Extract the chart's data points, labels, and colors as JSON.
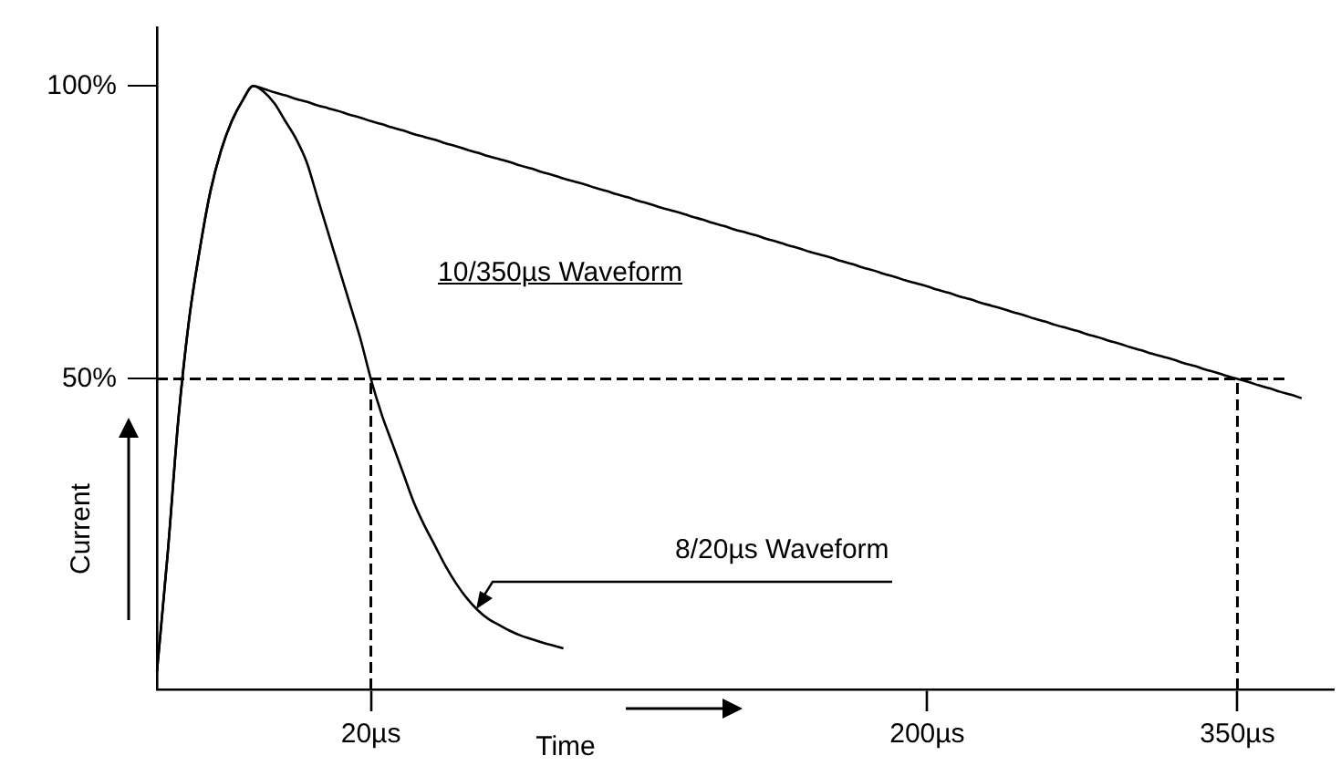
{
  "chart_data": {
    "type": "line",
    "xlabel": "Time",
    "ylabel": "Current",
    "categories": [
      null,
      null,
      null,
      null,
      null,
      null,
      null,
      null,
      null,
      null,
      null,
      null,
      null,
      null,
      null,
      null,
      null,
      null,
      null,
      null,
      "20µs",
      null,
      null,
      null,
      null,
      null,
      null,
      null,
      null,
      null,
      null,
      null,
      null,
      null,
      null,
      null,
      null,
      null,
      null,
      null,
      null,
      null,
      null,
      null,
      null,
      null,
      null,
      null,
      null,
      null,
      null,
      null,
      null,
      null,
      null,
      null,
      null,
      null,
      null,
      null,
      null,
      null,
      null,
      null,
      null,
      null,
      null,
      null,
      null,
      null,
      null,
      null,
      "200µs",
      null,
      null,
      null,
      null,
      null,
      null,
      null,
      null,
      null,
      null,
      null,
      null,
      null,
      null,
      null,
      null,
      null,
      null,
      null,
      null,
      null,
      null,
      null,
      null,
      null,
      null,
      null,
      null,
      "350µs",
      null,
      null,
      null,
      null,
      null,
      null,
      null,
      null,
      null
    ],
    "ylim": [
      -3,
      110
    ],
    "yticks": [
      {
        "value": 50,
        "label": "50%"
      },
      {
        "value": 100,
        "label": "100%"
      }
    ],
    "grid": false,
    "legend": false,
    "marker": "none",
    "line_style": "solid",
    "series": [
      {
        "name": "8/20µs Waveform",
        "color": "#000000",
        "values": [
          0,
          20,
          43,
          60,
          72,
          82,
          89,
          94,
          97.5,
          100,
          99,
          97,
          94,
          91,
          87,
          81,
          75,
          69,
          63,
          57,
          50,
          44,
          39,
          34,
          29,
          25,
          21.5,
          18,
          15,
          12.5,
          10.5,
          9,
          8,
          7,
          6.2,
          5.6,
          5,
          4.5,
          4,
          null,
          null,
          null,
          null,
          null,
          null,
          null,
          null,
          null,
          null,
          null,
          null,
          null,
          null,
          null,
          null,
          null,
          null,
          null,
          null,
          null,
          null,
          null,
          null,
          null,
          null,
          null,
          null,
          null,
          null,
          null,
          null,
          null,
          null,
          null,
          null,
          null,
          null,
          null,
          null,
          null,
          null,
          null,
          null,
          null,
          null,
          null,
          null,
          null,
          null,
          null,
          null,
          null,
          null,
          null,
          null,
          null,
          null,
          null,
          null,
          null,
          null,
          null,
          null,
          null,
          null,
          null,
          null,
          null,
          null,
          null,
          null
        ]
      },
      {
        "name": "10/350µs Waveform",
        "color": "#000000",
        "values": [
          0,
          20,
          43,
          60,
          72,
          82,
          89,
          94,
          97.5,
          100,
          99.5,
          98.9,
          98.4,
          97.8,
          97.3,
          96.7,
          96.2,
          95.7,
          95.1,
          94.6,
          94.0,
          93.5,
          92.9,
          92.4,
          91.8,
          91.3,
          90.8,
          90.2,
          89.7,
          89.1,
          88.6,
          88.0,
          87.5,
          87.0,
          86.4,
          85.9,
          85.3,
          84.8,
          84.2,
          83.7,
          83.2,
          82.6,
          82.1,
          81.5,
          81.0,
          80.4,
          79.9,
          79.3,
          78.8,
          78.3,
          77.7,
          77.2,
          76.6,
          76.1,
          75.5,
          75.0,
          74.5,
          73.9,
          73.4,
          72.8,
          72.3,
          71.7,
          71.2,
          70.7,
          70.1,
          69.6,
          69.0,
          68.5,
          67.9,
          67.4,
          66.8,
          66.3,
          65.8,
          65.2,
          64.7,
          64.1,
          63.6,
          63.0,
          62.5,
          62.0,
          61.4,
          60.9,
          60.3,
          59.8,
          59.2,
          58.7,
          58.2,
          57.6,
          57.1,
          56.5,
          56.0,
          55.4,
          54.9,
          54.3,
          53.8,
          53.3,
          52.7,
          52.2,
          51.6,
          51.1,
          50.5,
          50.0,
          49.5,
          48.9,
          48.4,
          47.8,
          47.3,
          46.7,
          null,
          null,
          null
        ]
      }
    ],
    "ref_lines": [
      {
        "axis": "y",
        "value": 50,
        "line_style": "dashed",
        "color": "#000000"
      },
      {
        "axis": "x",
        "value": "20µs",
        "line_style": "dashed",
        "color": "#000000"
      },
      {
        "axis": "x",
        "value": "350µs",
        "line_style": "dashed",
        "color": "#000000"
      }
    ]
  }
}
